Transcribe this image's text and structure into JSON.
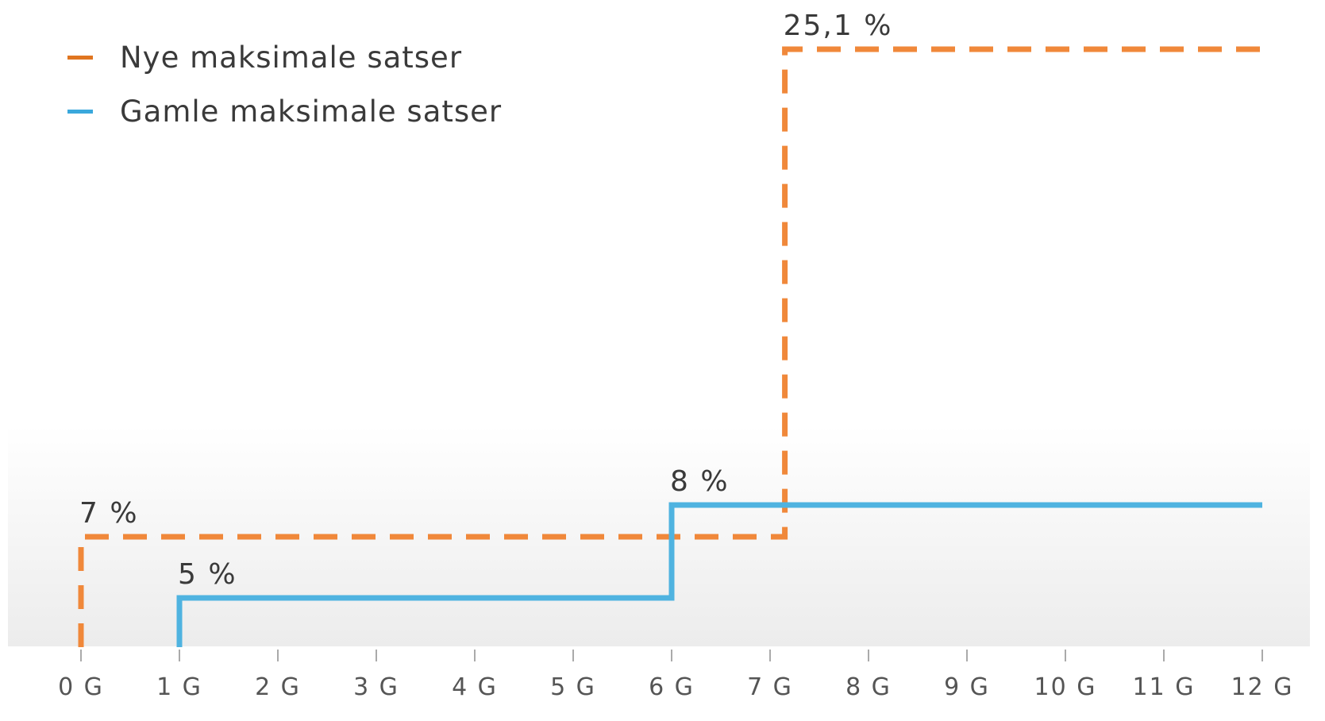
{
  "chart_data": {
    "type": "line",
    "step": true,
    "x_unit": "G",
    "xlim": [
      0,
      12
    ],
    "ylim": [
      0,
      25.1
    ],
    "x_ticks": [
      "0 G",
      "1 G",
      "2 G",
      "3 G",
      "4 G",
      "5 G",
      "6 G",
      "7 G",
      "8 G",
      "9 G",
      "10 G",
      "11 G",
      "12 G"
    ],
    "series": [
      {
        "name": "Nye maksimale satser",
        "color": "#f0883a",
        "line_style": "dashed",
        "points": [
          [
            0,
            7
          ],
          [
            7.15,
            7
          ],
          [
            7.15,
            25.1
          ],
          [
            12,
            25.1
          ]
        ],
        "start_from_axis": true
      },
      {
        "name": "Gamle maksimale satser",
        "color": "#4fb3e0",
        "line_style": "solid",
        "points": [
          [
            1,
            5
          ],
          [
            6,
            5
          ],
          [
            6,
            8
          ],
          [
            12,
            8
          ]
        ],
        "start_from_axis": true
      }
    ],
    "annotations": [
      {
        "text": "7 %",
        "x": 0,
        "y": 7
      },
      {
        "text": "5 %",
        "x": 1,
        "y": 5
      },
      {
        "text": "8 %",
        "x": 6,
        "y": 8
      },
      {
        "text": "25,1 %",
        "x": 7.15,
        "y": 25.1
      }
    ],
    "legend_position": "top-left",
    "grid": false,
    "background": "gradient-light-gray-lower-area"
  }
}
